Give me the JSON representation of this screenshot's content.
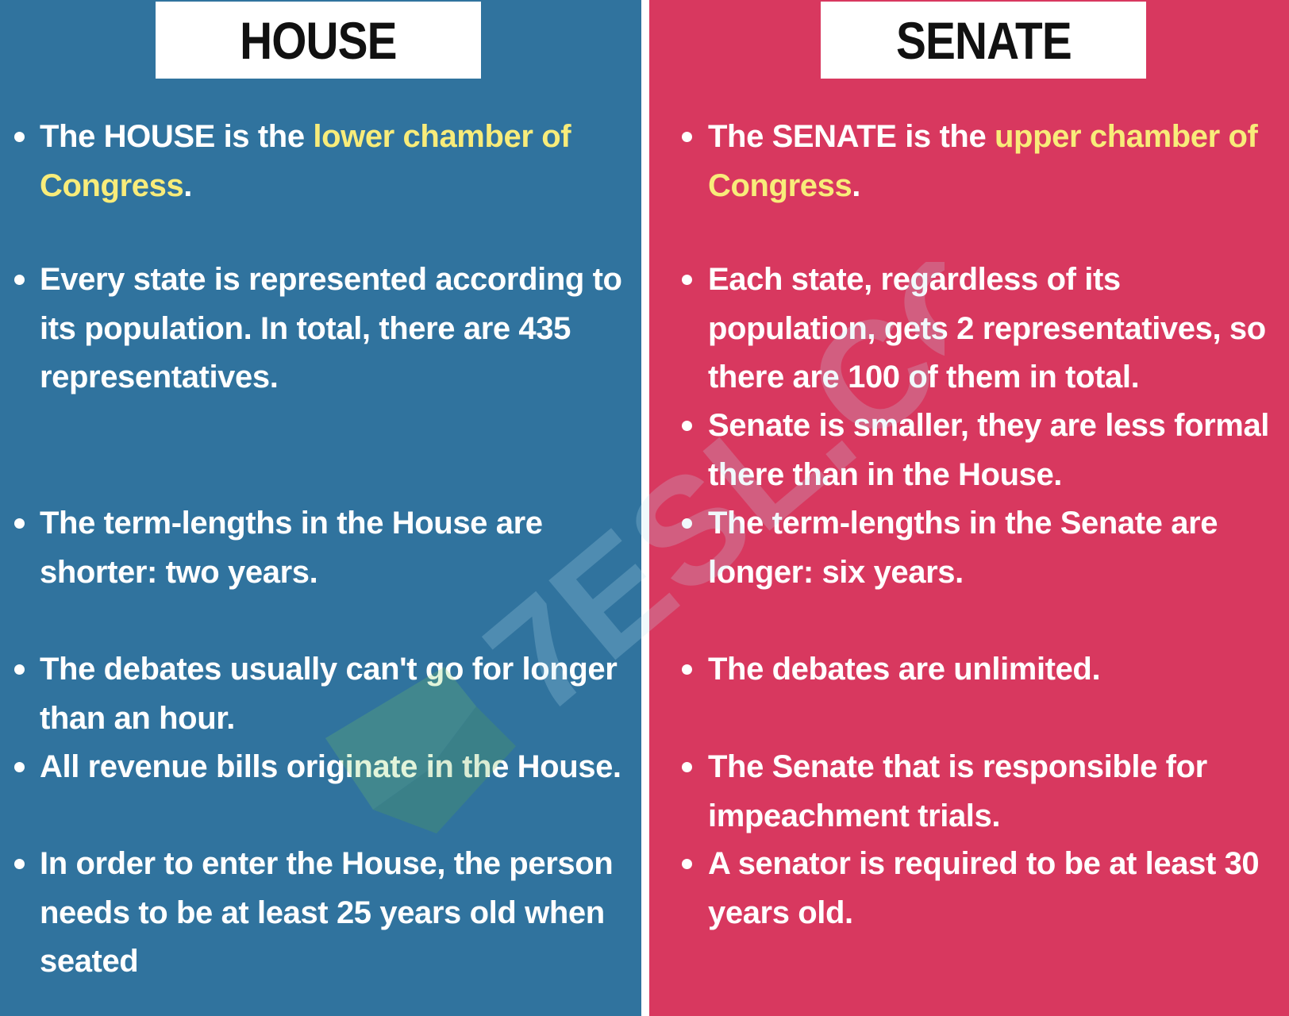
{
  "colors": {
    "house_bg": "#30739e",
    "senate_bg": "#d8385f",
    "divider": "#ffffff",
    "highlight": "#f8ec7a",
    "title_box_bg": "#ffffff",
    "title_text": "#111111"
  },
  "watermark": {
    "text": "7ESL.COM",
    "icon": "7esl-logo-icon"
  },
  "house": {
    "title": "HOUSE",
    "items": [
      {
        "text_before": "The HOUSE is the ",
        "highlight": "lower chamber of Congress",
        "text_after": "."
      },
      {
        "text": "Every state is represented according to its population. In total, there are 435 representatives."
      },
      {
        "text": "The term-lengths in the House are shorter: two years."
      },
      {
        "text": "The debates usually can't go for longer than an hour."
      },
      {
        "text": "All revenue bills originate in the House."
      },
      {
        "text": "In order to enter the House, the person needs to be at least 25 years old when seated"
      }
    ]
  },
  "senate": {
    "title": "SENATE",
    "items": [
      {
        "text_before": "The SENATE is the ",
        "highlight": "upper chamber of Congress",
        "text_after": "."
      },
      {
        "text": "Each state, regardless of its population, gets 2 representatives, so there are 100 of them in total."
      },
      {
        "text": "Senate is smaller, they are less formal there than in the House."
      },
      {
        "text": "The term-lengths in the Senate are longer: six years."
      },
      {
        "text": "The debates are unlimited."
      },
      {
        "text": "The Senate that is responsible for impeachment trials."
      },
      {
        "text": "A senator is required to be at least 30 years old."
      }
    ]
  }
}
